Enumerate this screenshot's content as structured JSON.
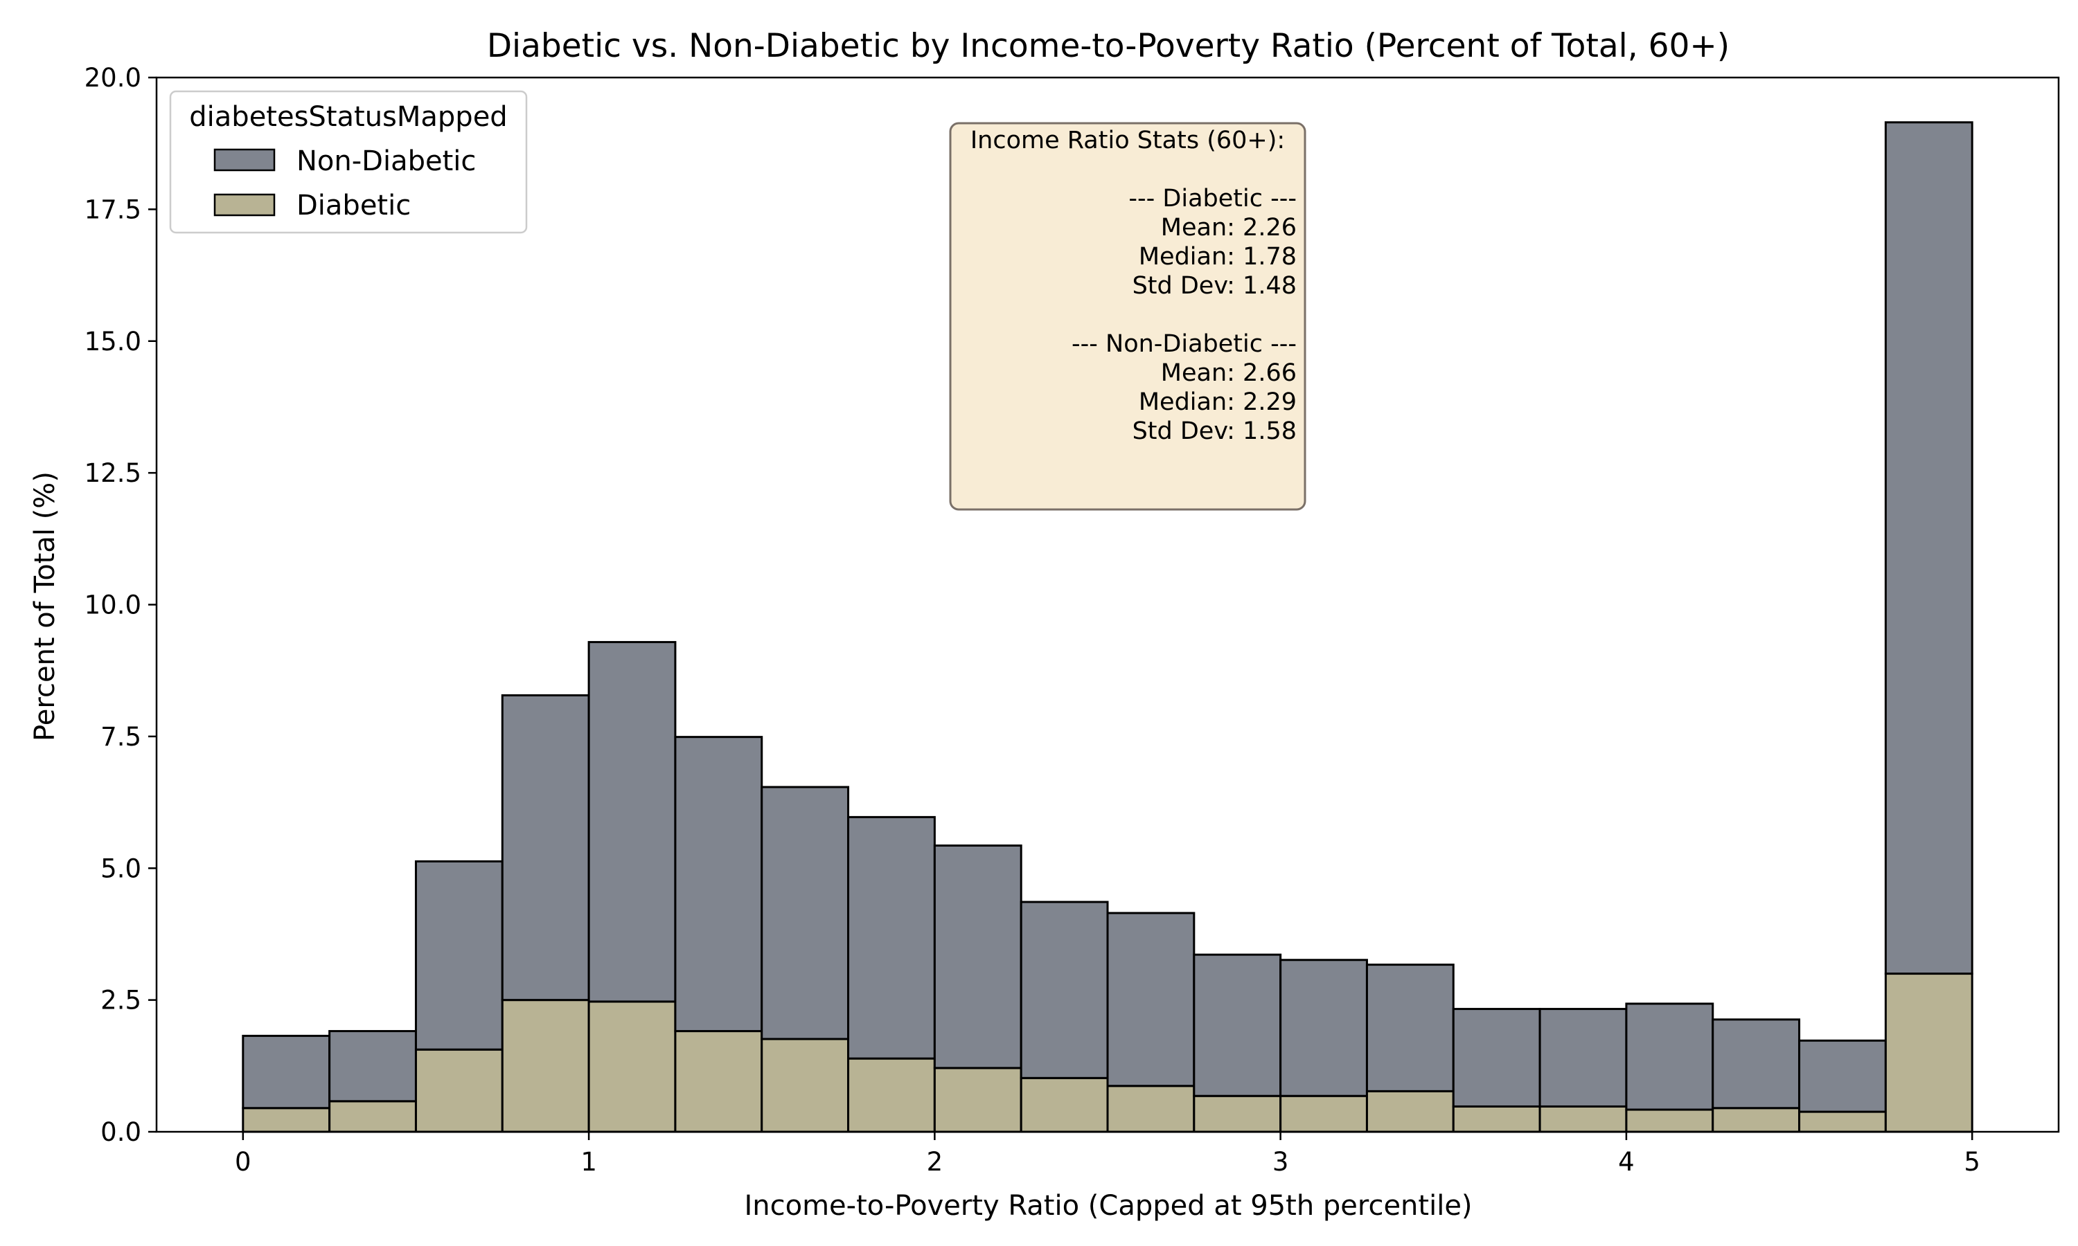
{
  "chart_data": {
    "type": "bar",
    "stacked": true,
    "title": "Diabetic vs. Non-Diabetic by Income-to-Poverty Ratio (Percent of Total, 60+)",
    "xlabel": "Income-to-Poverty Ratio (Capped at 95th percentile)",
    "ylabel": "Percent of Total (%)",
    "xlim": [
      -0.25,
      5.25
    ],
    "ylim": [
      0,
      20.0
    ],
    "x_ticks": [
      "0",
      "1",
      "2",
      "3",
      "4",
      "5"
    ],
    "y_ticks": [
      "0.0",
      "2.5",
      "5.0",
      "7.5",
      "10.0",
      "12.5",
      "15.0",
      "17.5",
      "20.0"
    ],
    "bin_edges": [
      0,
      0.25,
      0.5,
      0.75,
      1.0,
      1.25,
      1.5,
      1.75,
      2.0,
      2.25,
      2.5,
      2.75,
      3.0,
      3.25,
      3.5,
      3.75,
      4.0,
      4.25,
      4.5,
      4.75,
      5.0
    ],
    "series": [
      {
        "name": "Diabetic",
        "color": "#b8b394",
        "values": [
          0.45,
          0.58,
          1.56,
          2.5,
          2.47,
          1.91,
          1.76,
          1.39,
          1.21,
          1.02,
          0.87,
          0.68,
          0.68,
          0.77,
          0.48,
          0.48,
          0.42,
          0.45,
          0.38,
          3.0
        ]
      },
      {
        "name": "Non-Diabetic",
        "color": "#80858f",
        "values": [
          1.37,
          1.33,
          3.57,
          5.78,
          6.82,
          5.58,
          4.78,
          4.58,
          4.22,
          3.34,
          3.28,
          2.68,
          2.58,
          2.4,
          1.85,
          1.85,
          2.01,
          1.68,
          1.35,
          16.15
        ]
      }
    ],
    "legend": {
      "title": "diabetesStatusMapped",
      "placement": "top-left",
      "entries": [
        "Non-Diabetic",
        "Diabetic"
      ]
    },
    "annotation": {
      "lines": [
        "Income Ratio Stats (60+):",
        "",
        "--- Diabetic ---",
        "Mean: 2.26",
        "Median: 1.78",
        "Std Dev: 1.48",
        "",
        "--- Non-Diabetic ---",
        "Mean: 2.66",
        "Median: 2.29",
        "Std Dev: 1.58"
      ],
      "background": "#f8ecd5"
    },
    "grid": false
  }
}
